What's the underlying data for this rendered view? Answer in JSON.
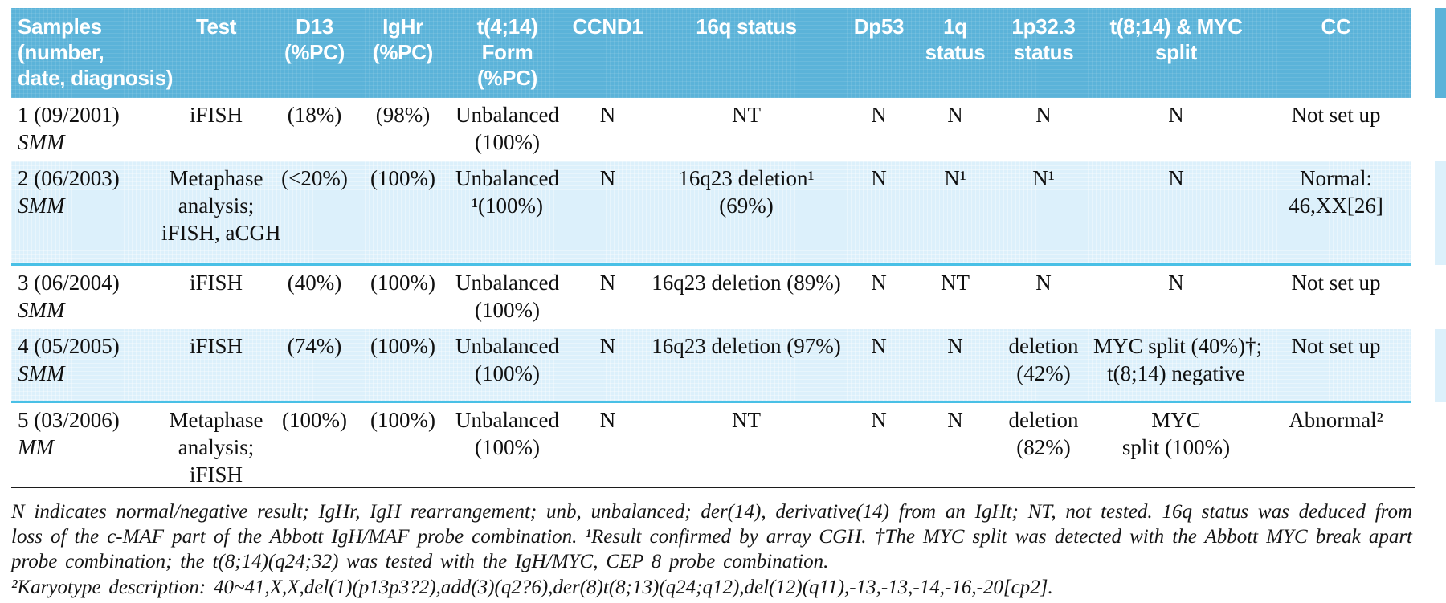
{
  "table": {
    "headers": [
      "Samples\n(number,\ndate, diagnosis)",
      "Test",
      "D13\n(%PC)",
      "IgHr\n(%PC)",
      "t(4;14)\nForm\n(%PC)",
      "CCND1",
      "16q status",
      "Dp53",
      "1q\nstatus",
      "1p32.3\nstatus",
      "t(8;14) & MYC\nsplit",
      "CC"
    ],
    "rows": [
      {
        "sample": "1 (09/2001)",
        "diagnosis": "SMM",
        "cells": [
          "iFISH",
          "(18%)",
          "(98%)",
          "Unbalanced\n(100%)",
          "N",
          "NT",
          "N",
          "N",
          "N",
          "N",
          "Not set up"
        ]
      },
      {
        "sample": "2 (06/2003)",
        "diagnosis": "SMM",
        "cells": [
          "Metaphase\nanalysis;\niFISH, aCGH",
          "(<20%)",
          "(100%)",
          "Unbalanced\n¹(100%)",
          "N",
          "16q23 deletion¹\n(69%)",
          "N",
          "N¹",
          "N¹",
          "N",
          "Normal:\n46,XX[26]"
        ]
      },
      {
        "sample": "3 (06/2004)",
        "diagnosis": "SMM",
        "cells": [
          "iFISH",
          "(40%)",
          "(100%)",
          "Unbalanced\n(100%)",
          "N",
          "16q23 deletion (89%)",
          "N",
          "NT",
          "N",
          "N",
          "Not set up"
        ]
      },
      {
        "sample": "4 (05/2005)",
        "diagnosis": "SMM",
        "cells": [
          "iFISH",
          "(74%)",
          "(100%)",
          "Unbalanced\n(100%)",
          "N",
          "16q23 deletion (97%)",
          "N",
          "N",
          "deletion\n(42%)",
          "MYC split (40%)†;\nt(8;14) negative",
          "Not set up"
        ]
      },
      {
        "sample": "5 (03/2006)",
        "diagnosis": "MM",
        "cells": [
          "Metaphase\nanalysis;\niFISH",
          "(100%)",
          "(100%)",
          "Unbalanced\n(100%)",
          "N",
          "NT",
          "N",
          "N",
          "deletion\n(82%)",
          "MYC\nsplit (100%)",
          "Abnormal²"
        ]
      }
    ]
  },
  "footnotes": {
    "note1": "N indicates normal/negative result; IgHr, IgH rearrangement; unb, unbalanced; der(14), derivative(14) from an IgHt; NT, not tested. 16q status was deduced from loss of the c-MAF part of the Abbott IgH/MAF probe combination. ¹Result confirmed by array CGH. †The MYC split was detected with the Abbott MYC break apart probe combination; the t(8;14)(q24;32) was tested with the IgH/MYC, CEP 8 probe combination.",
    "note2": "²Karyotype description: 40~41,X,X,del(1)(p13p3?2),add(3)(q2?6),der(8)t(8;13)(q24;q12),del(12)(q11),-13,-13,-14,-16,-20[cp2]."
  },
  "colors": {
    "header_bg": "#5bb3d9",
    "header_text": "#ffffff",
    "row_highlight": "#dcf0fb",
    "row_border": "#49c0e6",
    "text": "#101010"
  }
}
